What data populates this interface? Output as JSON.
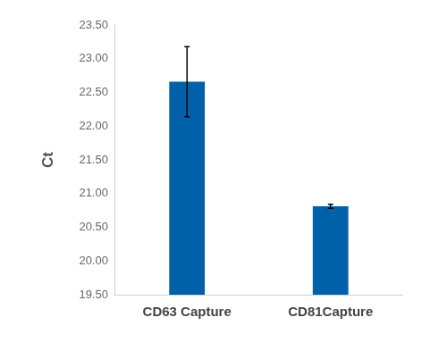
{
  "chart_data": {
    "type": "bar",
    "y_label": "Ct",
    "categories": [
      "CD63 Capture",
      "CD81Capture"
    ],
    "values": [
      22.66,
      20.81
    ],
    "errors": [
      0.52,
      0.03
    ],
    "color": "#0060a8",
    "ylim": [
      19.5,
      23.5
    ],
    "yticks": [
      {
        "value": 19.5,
        "label": "19.50"
      },
      {
        "value": 20,
        "label": "20.00"
      },
      {
        "value": 20.5,
        "label": "20.50"
      },
      {
        "value": 21,
        "label": "21.00"
      },
      {
        "value": 21.5,
        "label": "21.50"
      },
      {
        "value": 22,
        "label": "22.00"
      },
      {
        "value": 22.5,
        "label": "22.50"
      },
      {
        "value": 23,
        "label": "23.00"
      },
      {
        "value": 23.5,
        "label": "23.50"
      }
    ],
    "grid": false
  }
}
